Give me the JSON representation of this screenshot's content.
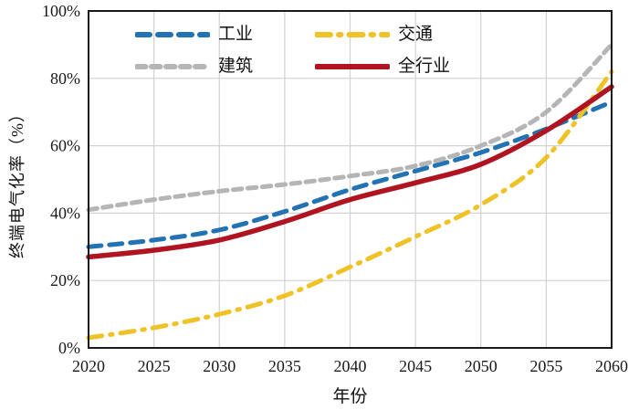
{
  "figure": {
    "background": "#FFFFFF",
    "border_color": "#1A1A1A",
    "gridline_color": "#D2D2D2"
  },
  "chart_data": {
    "type": "line",
    "title": "",
    "xlabel": "年份",
    "ylabel": "终端电气化率（%）",
    "x": [
      2020,
      2025,
      2030,
      2035,
      2040,
      2045,
      2050,
      2055,
      2060
    ],
    "xlim": [
      2020,
      2060
    ],
    "ylim": [
      0,
      100
    ],
    "xtick_labels": [
      "2020",
      "2025",
      "2030",
      "2035",
      "2040",
      "2045",
      "2050",
      "2055",
      "2060"
    ],
    "ytick_values": [
      0,
      20,
      40,
      60,
      80,
      100
    ],
    "ytick_labels": [
      "0%",
      "20%",
      "40%",
      "60%",
      "80%",
      "100%"
    ],
    "grid": true,
    "legend_position": "top-left-inside",
    "series": [
      {
        "name": "工业",
        "color": "#2272B4",
        "line_style": "dashed",
        "width": 5,
        "values": [
          30,
          32,
          35,
          40.5,
          47,
          52.5,
          58,
          65,
          73
        ]
      },
      {
        "name": "交通",
        "color": "#EFC228",
        "line_style": "dash-dot",
        "width": 5,
        "values": [
          3,
          6,
          10,
          15.5,
          24,
          33,
          42.5,
          56.5,
          82
        ]
      },
      {
        "name": "建筑",
        "color": "#B5B5B5",
        "line_style": "dashed-short",
        "width": 5,
        "values": [
          41,
          44,
          46.5,
          48.5,
          51,
          54,
          60,
          70,
          90
        ]
      },
      {
        "name": "全行业",
        "color": "#B01420",
        "line_style": "solid",
        "width": 5.5,
        "values": [
          27,
          29,
          32,
          37.5,
          44,
          49,
          54.5,
          64.5,
          77.5
        ]
      }
    ]
  }
}
